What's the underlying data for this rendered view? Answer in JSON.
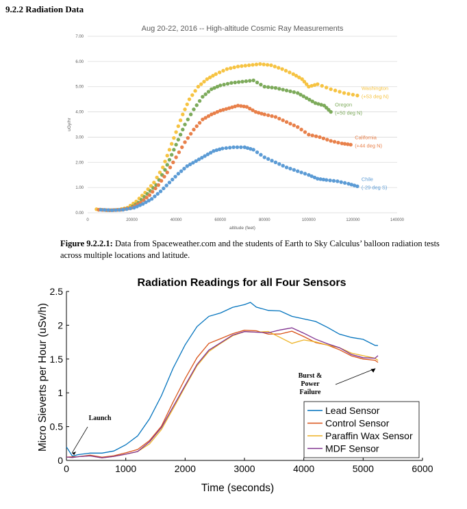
{
  "section_heading": "9.2.2 Radiation Data",
  "caption": {
    "label": "Figure 9.2.2.1:",
    "text": " Data from Spaceweather.com and the students of Earth to Sky Calculus’ balloon radiation tests across multiple locations and latitude."
  },
  "chart_data": [
    {
      "type": "scatter",
      "title": "Aug 20-22, 2016 -- High-altitude Cosmic Ray Measurements",
      "xlabel": "altitude (feet)",
      "ylabel": "uGy/hr",
      "xlim": [
        0,
        140000
      ],
      "ylim": [
        0,
        7
      ],
      "xticks": [
        "0",
        "20000",
        "40000",
        "60000",
        "80000",
        "100000",
        "120000",
        "140000"
      ],
      "yticks": [
        "0.00",
        "1.00",
        "2.00",
        "3.00",
        "4.00",
        "5.00",
        "6.00",
        "7.00"
      ],
      "grid": true,
      "series": [
        {
          "name": "Washington (+53 deg N)",
          "label_lines": [
            "Washington",
            "(+53 deg N)"
          ],
          "color": "#f6c342",
          "points": [
            [
              4000,
              0.14
            ],
            [
              9000,
              0.1
            ],
            [
              14000,
              0.12
            ],
            [
              18000,
              0.2
            ],
            [
              22000,
              0.45
            ],
            [
              26000,
              0.8
            ],
            [
              30000,
              1.2
            ],
            [
              34000,
              1.8
            ],
            [
              37000,
              2.5
            ],
            [
              40000,
              3.2
            ],
            [
              43000,
              3.9
            ],
            [
              46000,
              4.5
            ],
            [
              50000,
              5.0
            ],
            [
              54000,
              5.3
            ],
            [
              58000,
              5.5
            ],
            [
              63000,
              5.7
            ],
            [
              68000,
              5.8
            ],
            [
              73000,
              5.85
            ],
            [
              78000,
              5.9
            ],
            [
              83000,
              5.85
            ],
            [
              88000,
              5.7
            ],
            [
              93000,
              5.5
            ],
            [
              97000,
              5.3
            ],
            [
              100000,
              5.0
            ],
            [
              104000,
              5.1
            ],
            [
              110000,
              4.9
            ],
            [
              116000,
              4.75
            ],
            [
              122000,
              4.65
            ]
          ]
        },
        {
          "name": "Oregon (+50 deg N)",
          "label_lines": [
            "Oregon",
            "(+50 deg N)"
          ],
          "color": "#7caa5a",
          "points": [
            [
              5000,
              0.12
            ],
            [
              10000,
              0.1
            ],
            [
              15000,
              0.12
            ],
            [
              19000,
              0.18
            ],
            [
              23000,
              0.4
            ],
            [
              27000,
              0.75
            ],
            [
              31000,
              1.1
            ],
            [
              35000,
              1.7
            ],
            [
              38000,
              2.3
            ],
            [
              41000,
              2.9
            ],
            [
              44000,
              3.5
            ],
            [
              48000,
              4.1
            ],
            [
              52000,
              4.6
            ],
            [
              56000,
              4.9
            ],
            [
              60000,
              5.05
            ],
            [
              65000,
              5.15
            ],
            [
              70000,
              5.2
            ],
            [
              75000,
              5.25
            ],
            [
              80000,
              5.0
            ],
            [
              85000,
              4.95
            ],
            [
              90000,
              4.85
            ],
            [
              95000,
              4.75
            ],
            [
              99000,
              4.55
            ],
            [
              103000,
              4.35
            ],
            [
              107000,
              4.25
            ],
            [
              110000,
              4.0
            ]
          ]
        },
        {
          "name": "California (+44 deg N)",
          "label_lines": [
            "California",
            "(+44 deg N)"
          ],
          "color": "#e8804a",
          "points": [
            [
              5000,
              0.12
            ],
            [
              10000,
              0.1
            ],
            [
              15000,
              0.12
            ],
            [
              20000,
              0.2
            ],
            [
              24000,
              0.4
            ],
            [
              28000,
              0.7
            ],
            [
              32000,
              1.1
            ],
            [
              36000,
              1.6
            ],
            [
              40000,
              2.2
            ],
            [
              44000,
              2.8
            ],
            [
              48000,
              3.3
            ],
            [
              52000,
              3.7
            ],
            [
              56000,
              3.9
            ],
            [
              60000,
              4.05
            ],
            [
              64000,
              4.15
            ],
            [
              68000,
              4.25
            ],
            [
              72000,
              4.2
            ],
            [
              76000,
              4.0
            ],
            [
              80000,
              3.9
            ],
            [
              85000,
              3.8
            ],
            [
              90000,
              3.6
            ],
            [
              95000,
              3.4
            ],
            [
              100000,
              3.1
            ],
            [
              105000,
              3.0
            ],
            [
              110000,
              2.85
            ],
            [
              115000,
              2.75
            ],
            [
              119000,
              2.7
            ]
          ]
        },
        {
          "name": "Chile (-29 deg S)",
          "label_lines": [
            "Chile",
            "(-29 deg S)"
          ],
          "color": "#5b9bd5",
          "points": [
            [
              6000,
              0.12
            ],
            [
              11000,
              0.1
            ],
            [
              16000,
              0.12
            ],
            [
              21000,
              0.2
            ],
            [
              25000,
              0.35
            ],
            [
              29000,
              0.55
            ],
            [
              33000,
              0.85
            ],
            [
              37000,
              1.2
            ],
            [
              41000,
              1.55
            ],
            [
              45000,
              1.85
            ],
            [
              49000,
              2.05
            ],
            [
              53000,
              2.25
            ],
            [
              57000,
              2.45
            ],
            [
              61000,
              2.55
            ],
            [
              66000,
              2.6
            ],
            [
              71000,
              2.6
            ],
            [
              75000,
              2.5
            ],
            [
              80000,
              2.2
            ],
            [
              85000,
              2.0
            ],
            [
              90000,
              1.8
            ],
            [
              95000,
              1.65
            ],
            [
              100000,
              1.5
            ],
            [
              104000,
              1.35
            ],
            [
              108000,
              1.3
            ],
            [
              113000,
              1.25
            ],
            [
              118000,
              1.15
            ],
            [
              122000,
              1.05
            ]
          ]
        }
      ]
    },
    {
      "type": "line",
      "title": "Radiation Readings for all Four Sensors",
      "xlabel": "Time (seconds)",
      "ylabel": "Micro Sieverts per Hour (uSv/h)",
      "xlim": [
        0,
        6000
      ],
      "ylim": [
        0,
        2.5
      ],
      "xticks": [
        "0",
        "1000",
        "2000",
        "3000",
        "4000",
        "5000",
        "6000"
      ],
      "yticks": [
        "0",
        "0.5",
        "1",
        "1.5",
        "2",
        "2.5"
      ],
      "grid": false,
      "legend_position": "bottom-right",
      "annotations": [
        {
          "text_lines": [
            "Launch"
          ],
          "x": 60,
          "y": 0.08
        },
        {
          "text_lines": [
            "Burst &",
            "Power",
            "Failure"
          ],
          "x": 5230,
          "y": 1.4
        }
      ],
      "series": [
        {
          "name": "Lead Sensor",
          "color": "#0072bd",
          "x": [
            0,
            100,
            200,
            400,
            600,
            800,
            1000,
            1200,
            1400,
            1600,
            1800,
            2000,
            2200,
            2400,
            2600,
            2800,
            3000,
            3100,
            3200,
            3400,
            3600,
            3800,
            4000,
            4200,
            4400,
            4600,
            4800,
            5000,
            5200,
            5250
          ],
          "y": [
            0.2,
            0.07,
            0.08,
            0.09,
            0.12,
            0.14,
            0.22,
            0.38,
            0.62,
            0.95,
            1.35,
            1.72,
            1.98,
            2.12,
            2.2,
            2.27,
            2.3,
            2.32,
            2.28,
            2.22,
            2.2,
            2.15,
            2.1,
            2.05,
            1.95,
            1.88,
            1.82,
            1.78,
            1.72,
            1.7
          ]
        },
        {
          "name": "Control Sensor",
          "color": "#d95319",
          "x": [
            0,
            100,
            200,
            400,
            600,
            800,
            1000,
            1200,
            1400,
            1600,
            1800,
            2000,
            2200,
            2400,
            2600,
            2800,
            3000,
            3200,
            3400,
            3600,
            3800,
            4000,
            4200,
            4400,
            4600,
            4800,
            5000,
            5200,
            5250
          ],
          "y": [
            0.05,
            0.06,
            0.05,
            0.06,
            0.06,
            0.07,
            0.1,
            0.18,
            0.3,
            0.5,
            0.85,
            1.22,
            1.52,
            1.72,
            1.82,
            1.88,
            1.92,
            1.9,
            1.88,
            1.87,
            1.9,
            1.85,
            1.75,
            1.7,
            1.62,
            1.56,
            1.5,
            1.47,
            1.45
          ]
        },
        {
          "name": "Paraffin Wax Sensor",
          "color": "#edb120",
          "x": [
            0,
            100,
            200,
            400,
            600,
            800,
            1000,
            1200,
            1400,
            1600,
            1800,
            2000,
            2200,
            2400,
            2600,
            2800,
            3000,
            3200,
            3400,
            3600,
            3800,
            4000,
            4200,
            4400,
            4600,
            4800,
            5000,
            5200,
            5250
          ],
          "y": [
            0.05,
            0.05,
            0.05,
            0.05,
            0.05,
            0.06,
            0.08,
            0.15,
            0.25,
            0.45,
            0.75,
            1.1,
            1.4,
            1.6,
            1.75,
            1.85,
            1.9,
            1.88,
            1.92,
            1.82,
            1.72,
            1.8,
            1.76,
            1.7,
            1.65,
            1.6,
            1.55,
            1.5,
            1.48
          ]
        },
        {
          "name": "MDF Sensor",
          "color": "#7e2f8e",
          "x": [
            0,
            100,
            200,
            400,
            600,
            800,
            1000,
            1200,
            1400,
            1600,
            1800,
            2000,
            2200,
            2400,
            2600,
            2800,
            3000,
            3200,
            3400,
            3600,
            3800,
            4000,
            4200,
            4400,
            4600,
            4800,
            5000,
            5200,
            5250
          ],
          "y": [
            0.05,
            0.05,
            0.05,
            0.05,
            0.05,
            0.06,
            0.08,
            0.15,
            0.28,
            0.48,
            0.78,
            1.12,
            1.42,
            1.62,
            1.76,
            1.86,
            1.9,
            1.88,
            1.9,
            1.93,
            1.95,
            1.9,
            1.8,
            1.72,
            1.65,
            1.58,
            1.52,
            1.5,
            1.55
          ]
        }
      ]
    }
  ]
}
